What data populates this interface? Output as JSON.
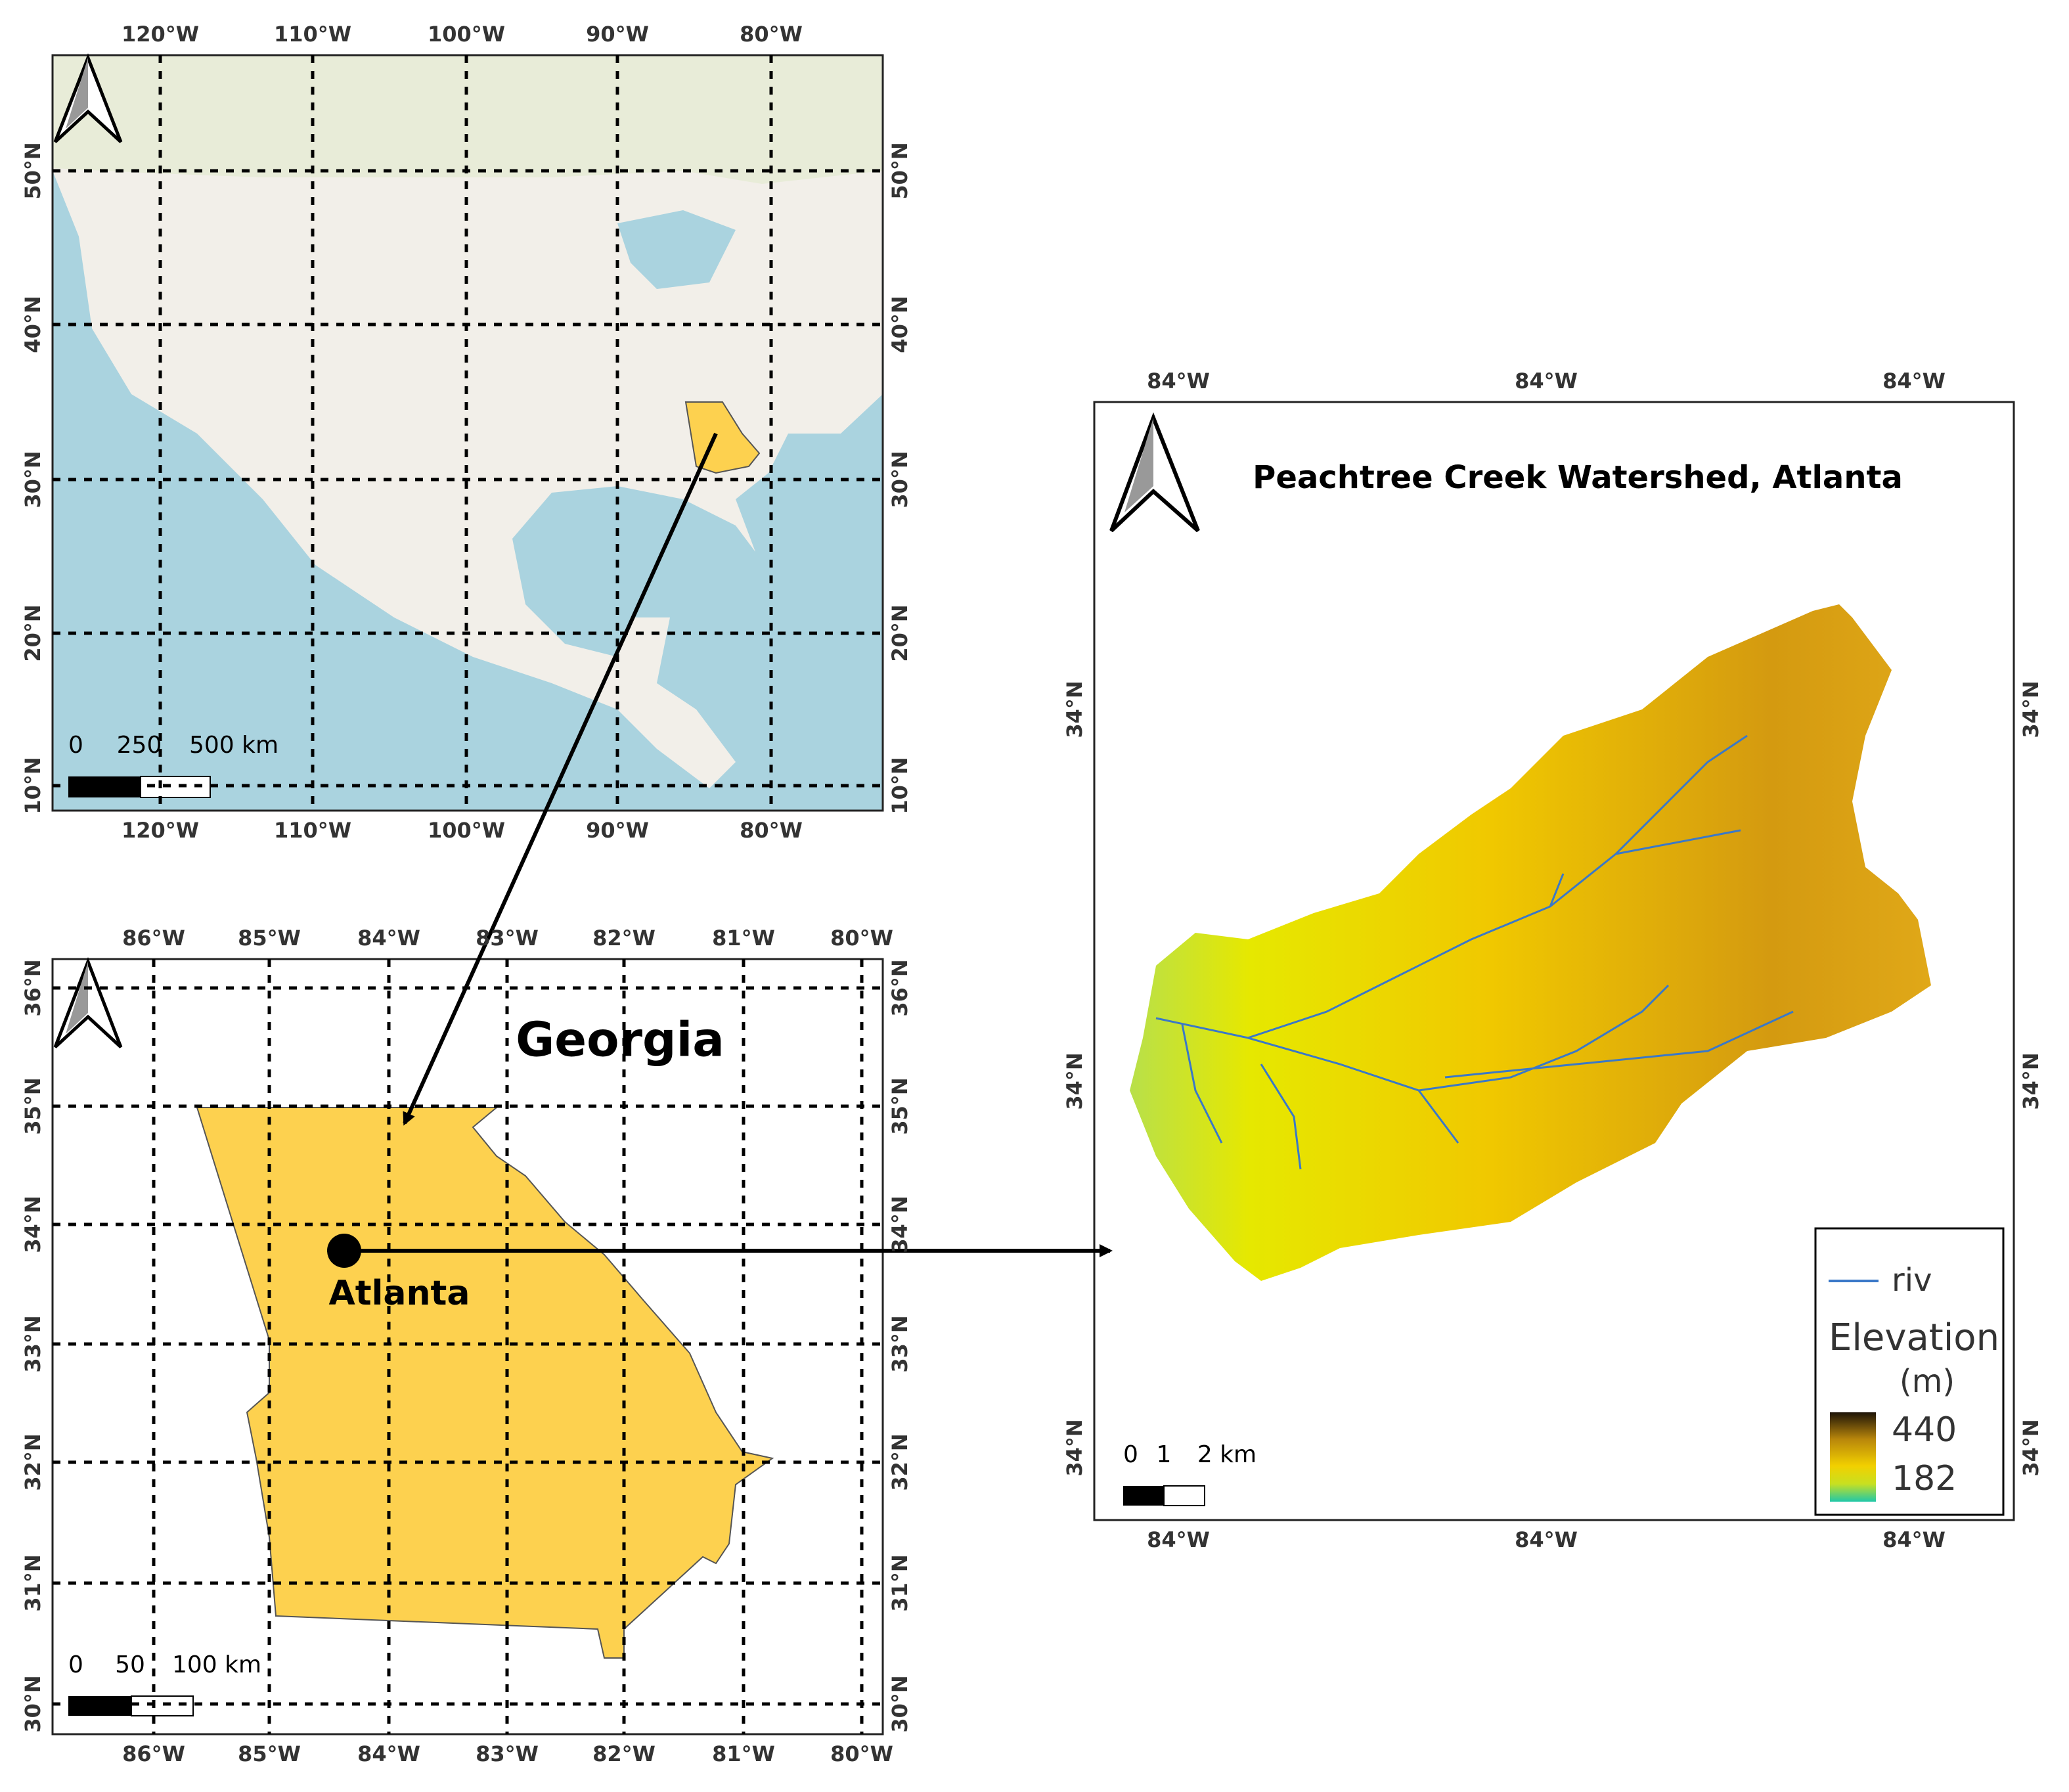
{
  "us_map": {
    "lon_labels": [
      "120°W",
      "110°W",
      "100°W",
      "90°W",
      "80°W"
    ],
    "lat_labels": [
      "50°N",
      "40°N",
      "30°N",
      "20°N",
      "10°N"
    ],
    "scale_labels": [
      "0",
      "250",
      "500 km"
    ]
  },
  "georgia_map": {
    "title": "Georgia",
    "city": "Atlanta",
    "lon_labels": [
      "86°W",
      "85°W",
      "84°W",
      "83°W",
      "82°W",
      "81°W",
      "80°W"
    ],
    "lat_labels": [
      "36°N",
      "35°N",
      "34°N",
      "33°N",
      "32°N",
      "31°N",
      "30°N"
    ],
    "scale_labels": [
      "0",
      "50",
      "100 km"
    ]
  },
  "watershed_map": {
    "title": "Peachtree Creek Watershed, Atlanta",
    "lon_labels": [
      "84°W",
      "84°W",
      "84°W"
    ],
    "lat_labels": [
      "34°N",
      "34°N",
      "34°N"
    ],
    "scale_labels": [
      "0",
      "1",
      "2 km"
    ],
    "legend": {
      "river": "riv",
      "elevation_title": [
        "Elevation",
        "(m)"
      ],
      "max": "440",
      "min": "182"
    }
  }
}
